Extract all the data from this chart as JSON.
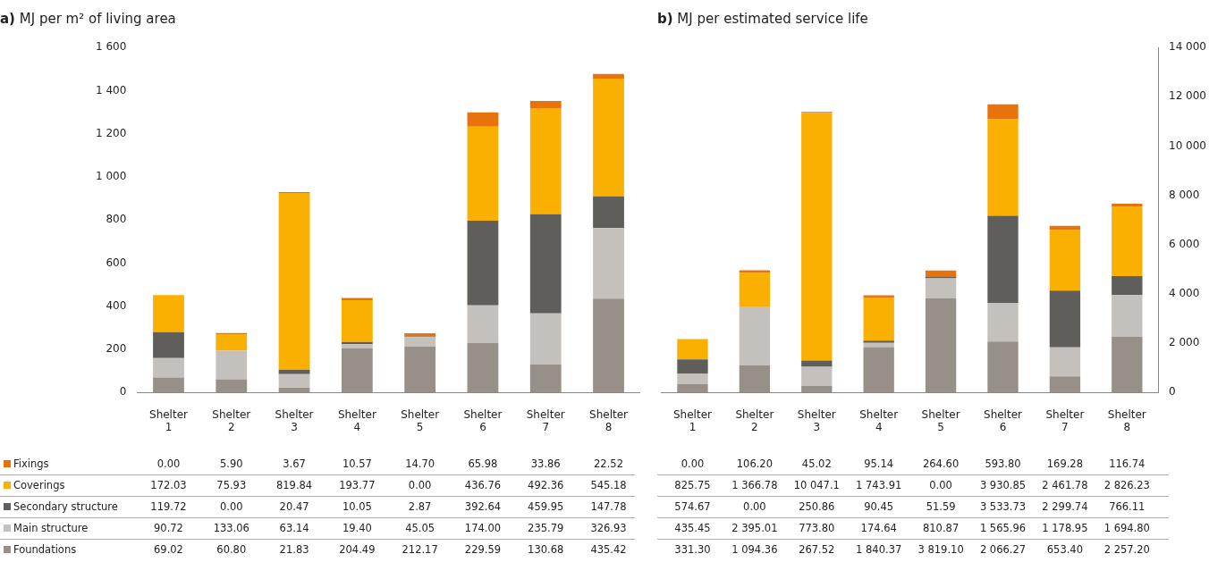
{
  "chart_data": [
    {
      "type": "bar",
      "title": "a) MJ per m² of living area",
      "stacked": true,
      "legend": "bottom",
      "grid": false,
      "categories": [
        "Shelter 1",
        "Shelter 2",
        "Shelter 3",
        "Shelter 4",
        "Shelter 5",
        "Shelter 6",
        "Shelter 7",
        "Shelter 8"
      ],
      "ylim": [
        0,
        1600
      ],
      "yticks": [
        0,
        200,
        400,
        600,
        800,
        {
          "value": 1000,
          "label": "1 000"
        },
        {
          "value": 1200,
          "label": "1 200"
        },
        {
          "value": 1400,
          "label": "1 400"
        },
        {
          "value": 1600,
          "label": "1 600"
        }
      ],
      "series": [
        {
          "name": "Foundations",
          "color": "#979089",
          "values": [
            69.02,
            60.8,
            21.83,
            204.49,
            212.17,
            229.59,
            130.68,
            435.42
          ],
          "value_labels": [
            "69.02",
            "60.80",
            "21.83",
            "204.49",
            "212.17",
            "229.59",
            "130.68",
            "435.42"
          ]
        },
        {
          "name": "Main structure",
          "color": "#c4c0bc",
          "values": [
            90.72,
            133.06,
            63.14,
            19.4,
            45.05,
            174.0,
            235.79,
            326.93
          ],
          "value_labels": [
            "90.72",
            "133.06",
            "63.14",
            "19.40",
            "45.05",
            "174.00",
            "235.79",
            "326.93"
          ]
        },
        {
          "name": "Secondary structure",
          "color": "#5f5e5a",
          "values": [
            119.72,
            0.0,
            20.47,
            10.05,
            2.87,
            392.64,
            459.95,
            147.78
          ],
          "value_labels": [
            "119.72",
            "0.00",
            "20.47",
            "10.05",
            "2.87",
            "392.64",
            "459.95",
            "147.78"
          ]
        },
        {
          "name": "Coverings",
          "color": "#f9b000",
          "values": [
            172.03,
            75.93,
            819.84,
            193.77,
            0.0,
            436.76,
            492.36,
            545.18
          ],
          "value_labels": [
            "172.03",
            "75.93",
            "819.84",
            "193.77",
            "0.00",
            "436.76",
            "492.36",
            "545.18"
          ]
        },
        {
          "name": "Fixings",
          "color": "#e8730c",
          "values": [
            0.0,
            5.9,
            3.67,
            10.57,
            14.7,
            65.98,
            33.86,
            22.52
          ],
          "value_labels": [
            "0.00",
            "5.90",
            "3.67",
            "10.57",
            "14.70",
            "65.98",
            "33.86",
            "22.52"
          ]
        }
      ]
    },
    {
      "type": "bar",
      "title": "b) MJ per estimated service life",
      "stacked": true,
      "legend": false,
      "grid": false,
      "categories": [
        "Shelter 1",
        "Shelter 2",
        "Shelter 3",
        "Shelter 4",
        "Shelter 5",
        "Shelter 6",
        "Shelter 7",
        "Shelter 8"
      ],
      "ylim": [
        0,
        14000
      ],
      "yticks": [
        0,
        {
          "value": 2000,
          "label": "2 000"
        },
        {
          "value": 4000,
          "label": "4 000"
        },
        {
          "value": 6000,
          "label": "6 000"
        },
        {
          "value": 8000,
          "label": "8 000"
        },
        {
          "value": 10000,
          "label": "10 000"
        },
        {
          "value": 12000,
          "label": "12 000"
        },
        {
          "value": 14000,
          "label": "14 000"
        }
      ],
      "series": [
        {
          "color": "#979089",
          "values": [
            331.3,
            1094.36,
            267.52,
            1840.37,
            3819.1,
            2066.27,
            653.4,
            2257.2
          ],
          "value_labels": [
            "331.30",
            "1 094.36",
            "267.52",
            "1 840.37",
            "3 819.10",
            "2 066.27",
            "653.40",
            "2 257.20"
          ]
        },
        {
          "color": "#c4c0bc",
          "values": [
            435.45,
            2395.01,
            773.8,
            174.64,
            810.87,
            1565.96,
            1178.95,
            1694.8
          ],
          "value_labels": [
            "435.45",
            "2 395.01",
            "773.80",
            "174.64",
            "810.87",
            "1 565.96",
            "1 178.95",
            "1 694.80"
          ]
        },
        {
          "color": "#5f5e5a",
          "values": [
            574.67,
            0.0,
            250.86,
            90.45,
            51.59,
            3533.73,
            2299.74,
            766.11
          ],
          "value_labels": [
            "574.67",
            "0.00",
            "250.86",
            "90.45",
            "51.59",
            "3 533.73",
            "2 299.74",
            "766.11"
          ]
        },
        {
          "color": "#f9b000",
          "values": [
            825.75,
            1366.78,
            10047.1,
            1743.91,
            0.0,
            3930.85,
            2461.78,
            2826.23
          ],
          "value_labels": [
            "825.75",
            "1 366.78",
            "10 047.1",
            "1 743.91",
            "0.00",
            "3 930.85",
            "2 461.78",
            "2 826.23"
          ]
        },
        {
          "color": "#e8730c",
          "values": [
            0.0,
            106.2,
            45.02,
            95.14,
            264.6,
            593.8,
            169.28,
            116.74
          ],
          "value_labels": [
            "0.00",
            "106.20",
            "45.02",
            "95.14",
            "264.60",
            "593.80",
            "169.28",
            "116.74"
          ]
        }
      ]
    }
  ]
}
